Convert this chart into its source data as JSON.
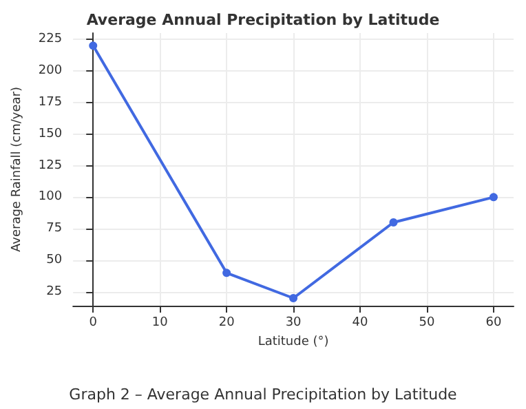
{
  "chart_data": {
    "type": "line",
    "title": "Average Annual Precipitation by Latitude",
    "xlabel": "Latitude (°)",
    "ylabel": "Average Rainfall (cm/year)",
    "x": [
      0,
      20,
      30,
      45,
      60
    ],
    "series": [
      {
        "color": "#4169e1",
        "values": [
          220,
          40,
          20,
          80,
          100
        ]
      }
    ],
    "xlim": [
      -3,
      63
    ],
    "xticks": [
      0,
      10,
      20,
      30,
      40,
      50,
      60
    ],
    "ylim": [
      14,
      230
    ],
    "yticks": [
      25,
      50,
      75,
      100,
      125,
      150,
      175,
      200,
      225
    ],
    "grid": true,
    "marker": "circle",
    "line_style": "solid",
    "annotations": [
      "Graph 2 – Average Annual Precipitation by Latitude"
    ]
  }
}
